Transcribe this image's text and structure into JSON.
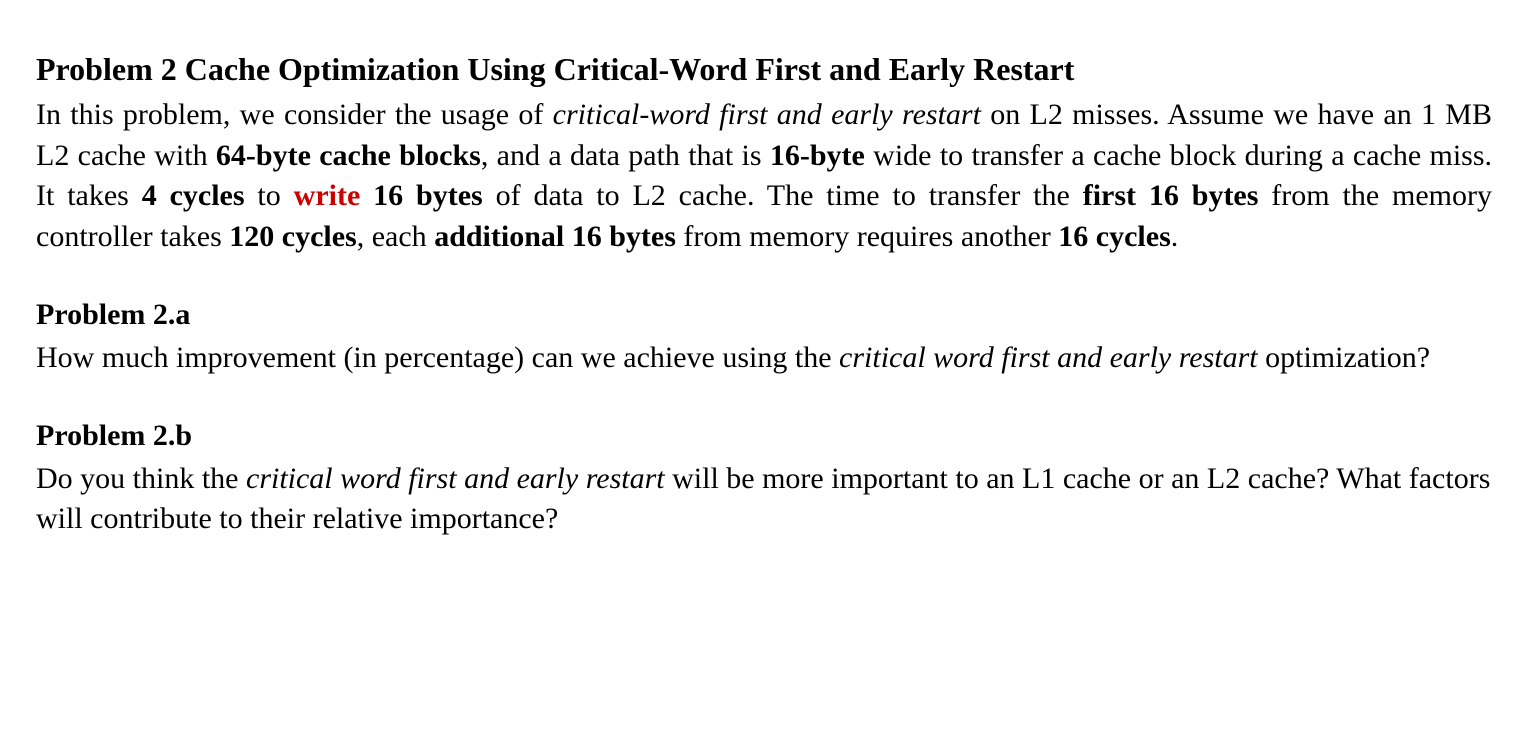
{
  "colors": {
    "background": "#ffffff",
    "text": "#000000",
    "accent_red": "#cc0000"
  },
  "typography": {
    "font_family": "Times New Roman",
    "body_size_pt": 22,
    "title_size_pt": 24,
    "line_height": 1.35,
    "bold_weight": 700
  },
  "title": "Problem 2 Cache Optimization Using Critical-Word First and Early Restart",
  "intro": {
    "t1": "In this problem, we consider the usage of ",
    "t2": "critical-word first and early restart",
    "t3": " on L2 misses. Assume we have an 1 MB L2 cache with ",
    "t4": "64-byte cache blocks",
    "t5": ", and a data path that is ",
    "t6": "16-byte",
    "t7": " wide to transfer a cache block during a cache miss. It takes ",
    "t8": "4 cycles",
    "t9": " to ",
    "t10": "write",
    "t11": " ",
    "t12": "16 bytes",
    "t13": " of data to L2 cache. The time to transfer the ",
    "t14": "first 16 bytes",
    "t15": " from the memory controller takes ",
    "t16": "120 cycles",
    "t17": ", each ",
    "t18": "additional 16 bytes",
    "t19": " from memory requires another ",
    "t20": "16 cycles",
    "t21": "."
  },
  "p2a": {
    "heading": "Problem 2.a",
    "t1": "How much improvement (in percentage) can we achieve using the ",
    "t2": "critical word first and early restart",
    "t3": " optimization?"
  },
  "p2b": {
    "heading": "Problem 2.b",
    "t1": "Do you think the ",
    "t2": "critical word first and early restart",
    "t3": " will be more important to an L1 cache or an L2 cache? What factors will contribute to their relative importance?"
  }
}
